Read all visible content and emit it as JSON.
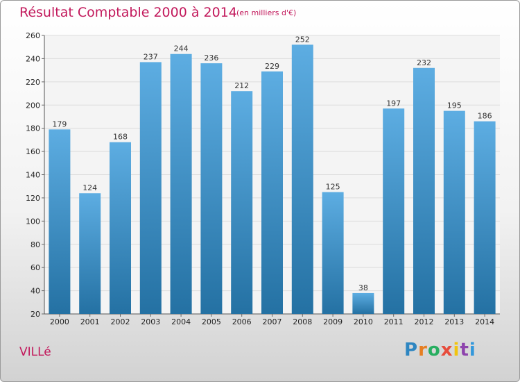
{
  "header": {
    "title": "Résultat Comptable 2000 à 2014",
    "subtitle": "(en milliers d'€)"
  },
  "location": "VILLé",
  "brand": {
    "text": "Proxiti",
    "letter_colors": [
      "#2e86c1",
      "#e67e22",
      "#27ae60",
      "#e74c3c",
      "#f1c40f",
      "#8e44ad",
      "#3498db"
    ]
  },
  "colors": {
    "bar_light": "#5dade2",
    "bar_dark": "#2471a3",
    "title": "#c2185b"
  },
  "chart_data": {
    "type": "bar",
    "title": "Résultat Comptable 2000 à 2014",
    "subtitle": "(en milliers d'€)",
    "xlabel": "",
    "ylabel": "",
    "categories": [
      "2000",
      "2001",
      "2002",
      "2003",
      "2004",
      "2005",
      "2006",
      "2007",
      "2008",
      "2009",
      "2010",
      "2011",
      "2012",
      "2013",
      "2014"
    ],
    "values": [
      179,
      124,
      168,
      237,
      244,
      236,
      212,
      229,
      252,
      125,
      38,
      197,
      232,
      195,
      186
    ],
    "ylim": [
      20,
      260
    ],
    "yticks": [
      20,
      40,
      60,
      80,
      100,
      120,
      140,
      160,
      180,
      200,
      220,
      240,
      260
    ],
    "grid": true
  }
}
